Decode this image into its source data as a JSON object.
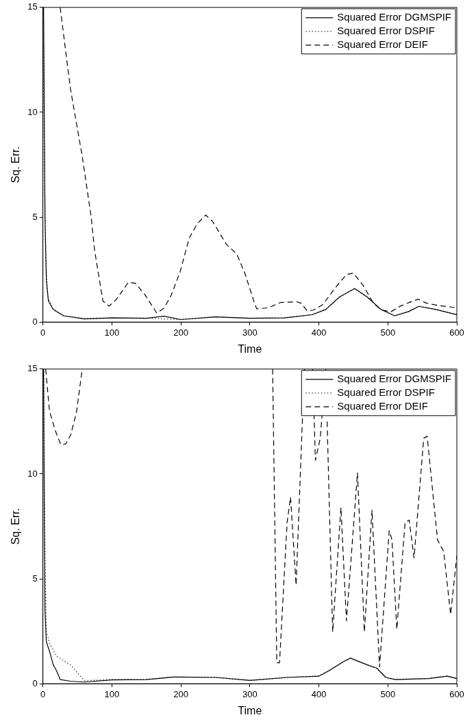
{
  "chart_data": [
    {
      "type": "line",
      "xlabel": "Time",
      "ylabel": "Sq. Err.",
      "xlim": [
        0,
        600
      ],
      "ylim": [
        0,
        15
      ],
      "xticks": [
        0,
        100,
        200,
        300,
        400,
        500,
        600
      ],
      "yticks": [
        0,
        5,
        10,
        15
      ],
      "grid": false,
      "legend": "top right",
      "marker": "none",
      "series": [
        {
          "name": "Squared Error DGMSPIF",
          "color": "#000000",
          "line_style": "solid",
          "x": [
            1,
            3,
            5,
            8,
            15,
            30,
            60,
            100,
            150,
            175,
            200,
            250,
            300,
            350,
            390,
            410,
            430,
            452,
            470,
            490,
            510,
            530,
            545,
            570,
            600
          ],
          "values": [
            15,
            5,
            2,
            1,
            0.6,
            0.3,
            0.15,
            0.2,
            0.18,
            0.28,
            0.12,
            0.25,
            0.18,
            0.2,
            0.35,
            0.6,
            1.2,
            1.6,
            1.2,
            0.6,
            0.3,
            0.5,
            0.75,
            0.6,
            0.35
          ]
        },
        {
          "name": "Squared Error DSPIF",
          "color": "#555555",
          "line_style": "dotted",
          "x": [
            0,
            2,
            4,
            7,
            15,
            30,
            60,
            100,
            150,
            200,
            250,
            300,
            350,
            390,
            410,
            430,
            452,
            470,
            490,
            510,
            530,
            545,
            570,
            600
          ],
          "values": [
            15,
            8,
            3,
            1.2,
            0.6,
            0.3,
            0.17,
            0.2,
            0.18,
            0.12,
            0.25,
            0.18,
            0.2,
            0.35,
            0.6,
            1.2,
            1.6,
            1.2,
            0.6,
            0.3,
            0.5,
            0.75,
            0.6,
            0.35
          ]
        },
        {
          "name": "Squared Error DEIF",
          "color": "#000000",
          "line_style": "dashed",
          "x": [
            25,
            40,
            57,
            70,
            75,
            87,
            96,
            107,
            124,
            134,
            148,
            165,
            175,
            185,
            199,
            212,
            224,
            236,
            246,
            266,
            281,
            293,
            307,
            310,
            327,
            344,
            368,
            374,
            383,
            392,
            406,
            423,
            440,
            450,
            464,
            479,
            491,
            505,
            518,
            532,
            544,
            556,
            573,
            600
          ],
          "values": [
            15,
            11.1,
            7.9,
            5,
            3.4,
            1,
            0.76,
            1.1,
            1.9,
            1.85,
            1.3,
            0.43,
            0.65,
            1.2,
            2.4,
            4,
            4.7,
            5.1,
            4.8,
            3.7,
            3.25,
            2.3,
            0.87,
            0.63,
            0.68,
            0.93,
            0.97,
            0.9,
            0.54,
            0.57,
            0.84,
            1.6,
            2.27,
            2.33,
            1.76,
            0.9,
            0.57,
            0.5,
            0.76,
            0.95,
            1.09,
            0.9,
            0.79,
            0.68
          ]
        }
      ]
    },
    {
      "type": "line",
      "xlabel": "Time",
      "ylabel": "Sq. Err.",
      "xlim": [
        0,
        600
      ],
      "ylim": [
        0,
        15
      ],
      "xticks": [
        0,
        100,
        200,
        300,
        400,
        500,
        600
      ],
      "yticks": [
        0,
        5,
        10,
        15
      ],
      "grid": false,
      "legend": "top right",
      "marker": "none",
      "series": [
        {
          "name": "Squared Error DGMSPIF",
          "color": "#000000",
          "line_style": "solid",
          "x": [
            1,
            2,
            3,
            5,
            10,
            15,
            20,
            25,
            40,
            60,
            100,
            150,
            190,
            251,
            300,
            354,
            400,
            415,
            436,
            446,
            470,
            484,
            497,
            511,
            559,
            586,
            600
          ],
          "values": [
            15,
            8,
            3.5,
            2,
            1.5,
            0.9,
            0.6,
            0.2,
            0.12,
            0.08,
            0.18,
            0.2,
            0.32,
            0.3,
            0.16,
            0.3,
            0.36,
            0.63,
            1.06,
            1.22,
            0.9,
            0.74,
            0.3,
            0.2,
            0.25,
            0.36,
            0.25
          ]
        },
        {
          "name": "Squared Error DSPIF",
          "color": "#555555",
          "line_style": "dotted",
          "x": [
            1,
            3,
            5,
            10,
            20,
            40,
            60,
            100,
            150,
            190,
            251,
            300,
            354,
            400,
            415,
            436,
            446,
            470,
            484,
            497,
            511,
            559,
            586,
            600
          ],
          "values": [
            15,
            6,
            2.5,
            1.9,
            1.3,
            0.9,
            0.15,
            0.2,
            0.2,
            0.32,
            0.3,
            0.16,
            0.3,
            0.36,
            0.63,
            1.06,
            1.22,
            0.9,
            0.74,
            0.3,
            0.2,
            0.25,
            0.36,
            0.25
          ]
        },
        {
          "name": "Squared Error DEIF",
          "color": "#000000",
          "line_style": "dashed",
          "x": [
            4,
            9.5,
            18,
            26,
            33,
            40,
            48.5,
            57,
            58,
            333,
            339,
            343,
            354,
            359,
            367,
            379,
            380,
            391,
            395,
            402,
            410,
            411,
            412,
            420,
            432,
            440,
            456,
            466,
            477,
            488,
            502,
            506,
            513,
            525,
            531,
            538,
            552,
            557,
            572,
            581,
            591,
            600
          ],
          "values": [
            15,
            13,
            12.06,
            11.39,
            11.43,
            11.84,
            12.9,
            15,
            null,
            15,
            1,
            1,
            7.7,
            8.9,
            4.7,
            15,
            null,
            15,
            10.65,
            11.7,
            15,
            null,
            12.5,
            2.47,
            8.4,
            3,
            10.05,
            2.47,
            8.27,
            0.8,
            7.3,
            6.86,
            2.6,
            7.7,
            7.8,
            6,
            11.7,
            11.8,
            6.86,
            6.3,
            3.3,
            6.1
          ]
        }
      ]
    }
  ]
}
